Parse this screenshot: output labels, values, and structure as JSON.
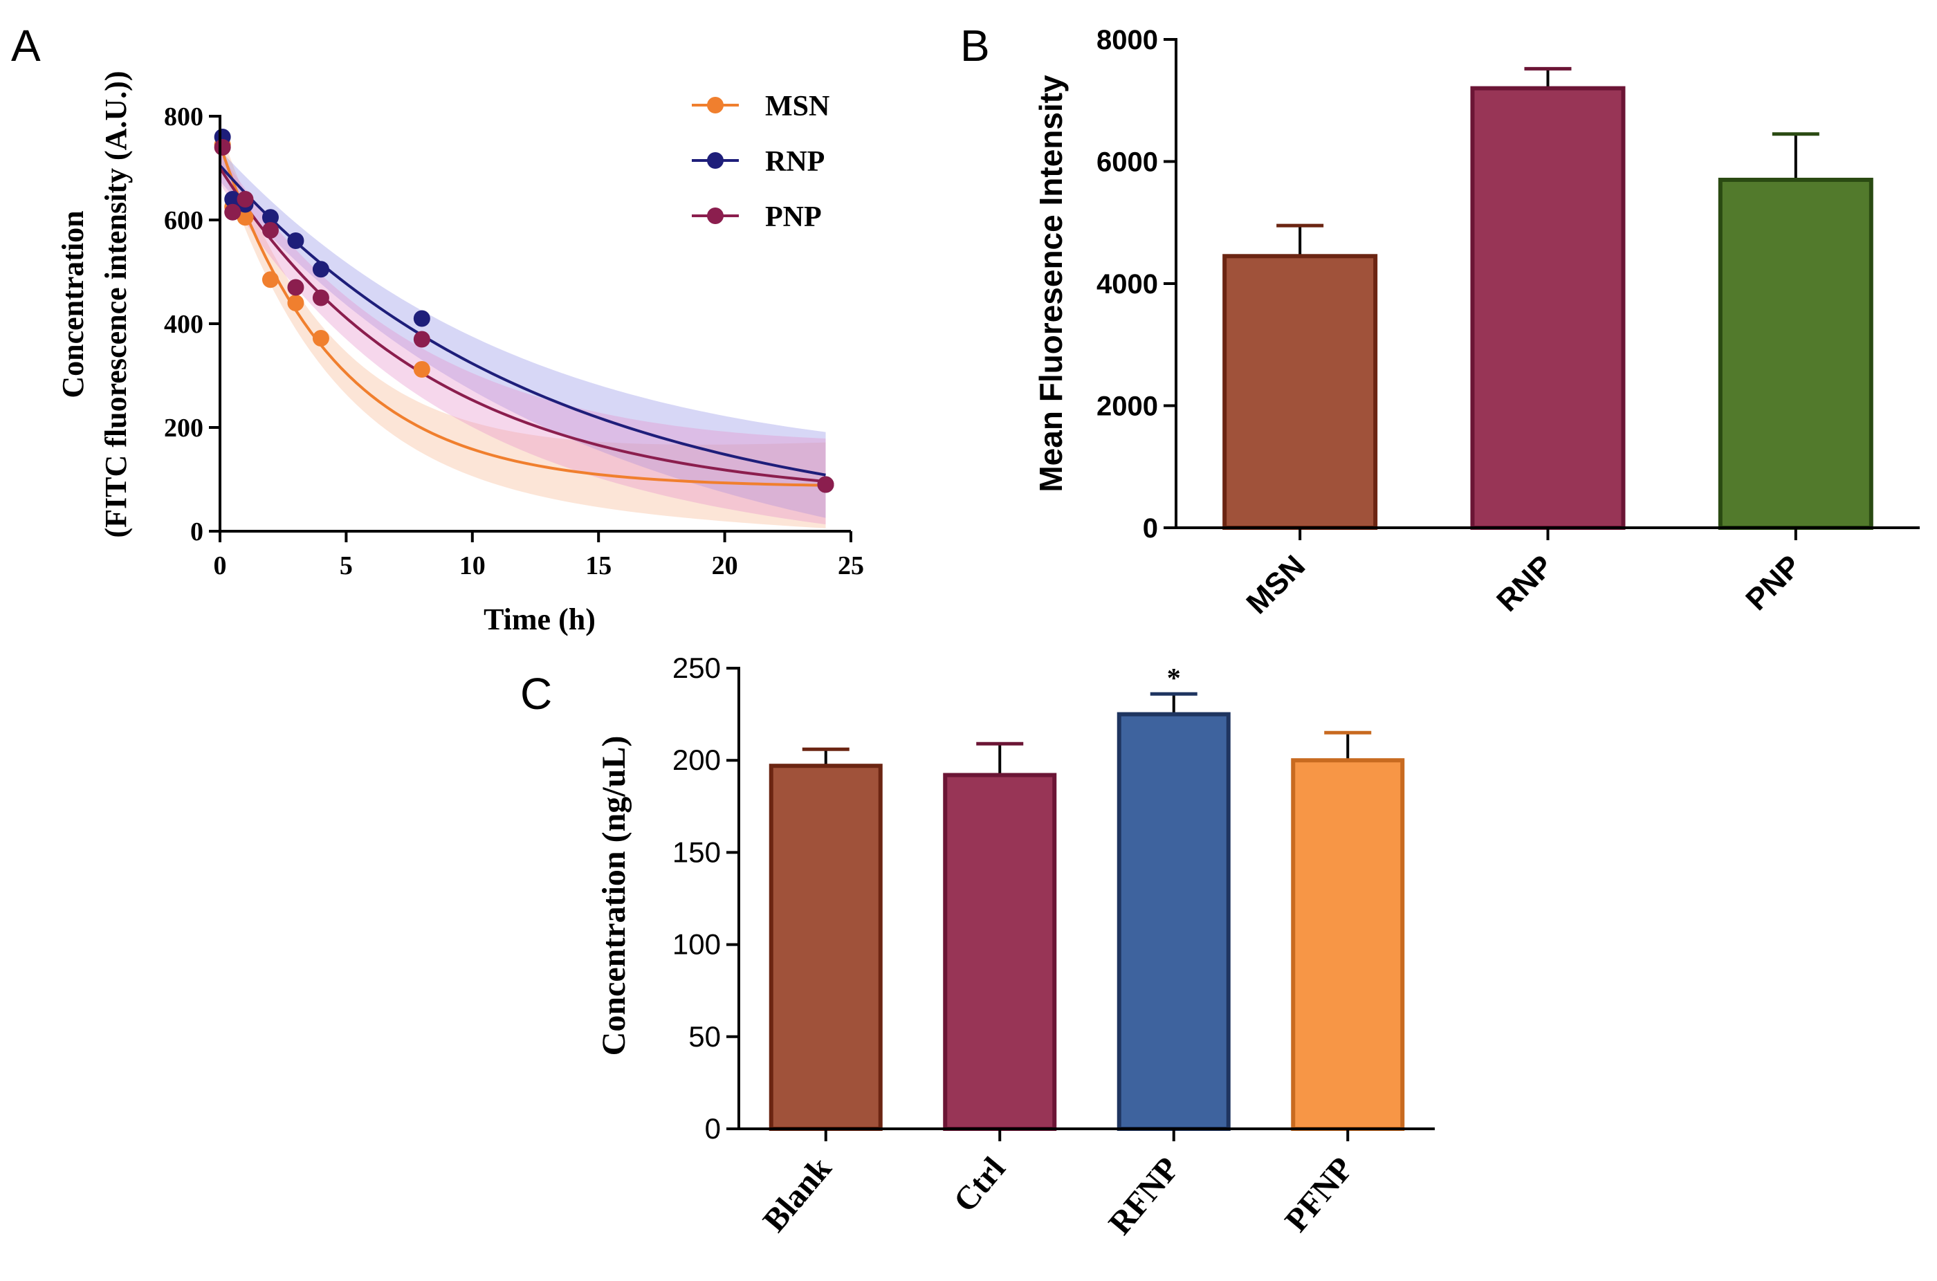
{
  "chart_data": [
    {
      "panel": "A",
      "type": "line",
      "title": "",
      "xlabel": "Time (h)",
      "ylabel_line1": "Concentration",
      "ylabel_line2": "(FITC fluorescence intensity (A.U.))",
      "xlim": [
        0,
        25
      ],
      "ylim": [
        0,
        800
      ],
      "xticks": [
        0,
        5,
        10,
        15,
        20,
        25
      ],
      "yticks": [
        0,
        200,
        400,
        600,
        800
      ],
      "legend_position": "top-right",
      "series": [
        {
          "name": "MSN",
          "color": "#F07F2E",
          "band_color": "#F7B48C",
          "points": [
            [
              0.1,
              745
            ],
            [
              0.5,
              625
            ],
            [
              1,
              605
            ],
            [
              2,
              485
            ],
            [
              3,
              440
            ],
            [
              4,
              372
            ],
            [
              8,
              312
            ],
            [
              24,
              90
            ]
          ],
          "fit": {
            "start": 745,
            "plateau": 85,
            "k": 0.22
          }
        },
        {
          "name": "RNP",
          "color": "#1E1E7A",
          "band_color": "#8C8CE6",
          "points": [
            [
              0.1,
              760
            ],
            [
              0.5,
              640
            ],
            [
              1,
              630
            ],
            [
              2,
              605
            ],
            [
              3,
              560
            ],
            [
              4,
              505
            ],
            [
              8,
              410
            ],
            [
              24,
              90
            ]
          ],
          "fit": {
            "start": 705,
            "plateau": 0,
            "k": 0.078
          }
        },
        {
          "name": "PNP",
          "color": "#8B1E4E",
          "band_color": "#E58CC8",
          "points": [
            [
              0.1,
              740
            ],
            [
              0.5,
              615
            ],
            [
              1,
              640
            ],
            [
              2,
              580
            ],
            [
              3,
              470
            ],
            [
              4,
              450
            ],
            [
              8,
              370
            ],
            [
              24,
              90
            ]
          ],
          "fit": {
            "start": 700,
            "plateau": 60,
            "k": 0.12
          }
        }
      ]
    },
    {
      "panel": "B",
      "type": "bar",
      "title": "",
      "xlabel": "",
      "ylabel": "Mean Fluoresence Intensity",
      "ylim": [
        0,
        8000
      ],
      "yticks": [
        0,
        2000,
        4000,
        6000,
        8000
      ],
      "categories": [
        "MSN",
        "RNP",
        "PNP"
      ],
      "values": [
        4450,
        7200,
        5700
      ],
      "errors": [
        500,
        320,
        750
      ],
      "colors": [
        "#A0523A",
        "#983556",
        "#527A2C"
      ],
      "edge_colors": [
        "#6B2512",
        "#6B1535",
        "#2A4A12"
      ]
    },
    {
      "panel": "C",
      "type": "bar",
      "title": "",
      "xlabel": "",
      "ylabel": "Concentration (ng/uL)",
      "ylim": [
        0,
        250
      ],
      "yticks": [
        0,
        50,
        100,
        150,
        200,
        250
      ],
      "categories": [
        "Blank",
        "Ctrl",
        "RFNP",
        "PFNP"
      ],
      "values": [
        197,
        192,
        225,
        200
      ],
      "errors": [
        9,
        17,
        11,
        15
      ],
      "significance": [
        "",
        "",
        "*",
        ""
      ],
      "colors": [
        "#A0523A",
        "#983556",
        "#3E639E",
        "#F79646"
      ],
      "edge_colors": [
        "#6B2512",
        "#6B1535",
        "#1F3560",
        "#C86A20"
      ]
    }
  ],
  "panel_labels": [
    "A",
    "B",
    "C"
  ]
}
